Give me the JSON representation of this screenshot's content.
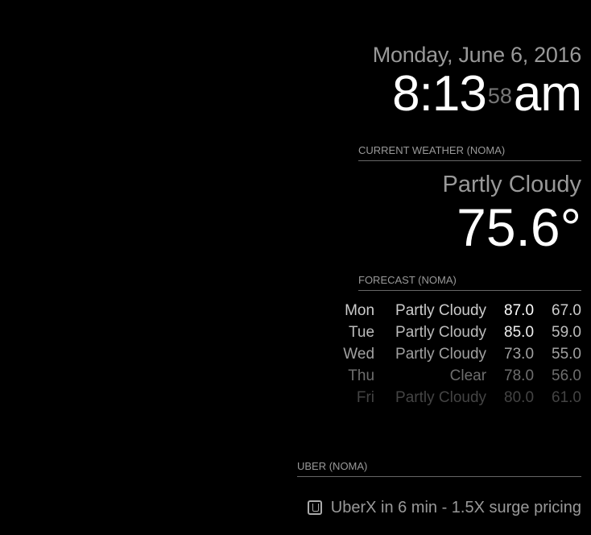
{
  "clock": {
    "date": "Monday, June 6, 2016",
    "hours_minutes": "8:13",
    "seconds": "58",
    "ampm": "am"
  },
  "current_weather": {
    "header": "CURRENT WEATHER (NOMA)",
    "condition": "Partly Cloudy",
    "temperature": "75.6°"
  },
  "forecast": {
    "header": "FORECAST (NOMA)",
    "rows": [
      {
        "day": "Mon",
        "condition": "Partly Cloudy",
        "high": "87.0",
        "low": "67.0",
        "color": "#cccccc"
      },
      {
        "day": "Tue",
        "condition": "Partly Cloudy",
        "high": "85.0",
        "low": "59.0",
        "color": "#bbbbbb"
      },
      {
        "day": "Wed",
        "condition": "Partly Cloudy",
        "high": "73.0",
        "low": "55.0",
        "color": "#a0a0a0"
      },
      {
        "day": "Thu",
        "condition": "Clear",
        "high": "78.0",
        "low": "56.0",
        "color": "#6e6e6e"
      },
      {
        "day": "Fri",
        "condition": "Partly Cloudy",
        "high": "80.0",
        "low": "61.0",
        "color": "#444444"
      }
    ]
  },
  "uber": {
    "header": "UBER (NOMA)",
    "icon": "uber-icon",
    "status": "UberX in 6 min - 1.5X surge pricing"
  }
}
